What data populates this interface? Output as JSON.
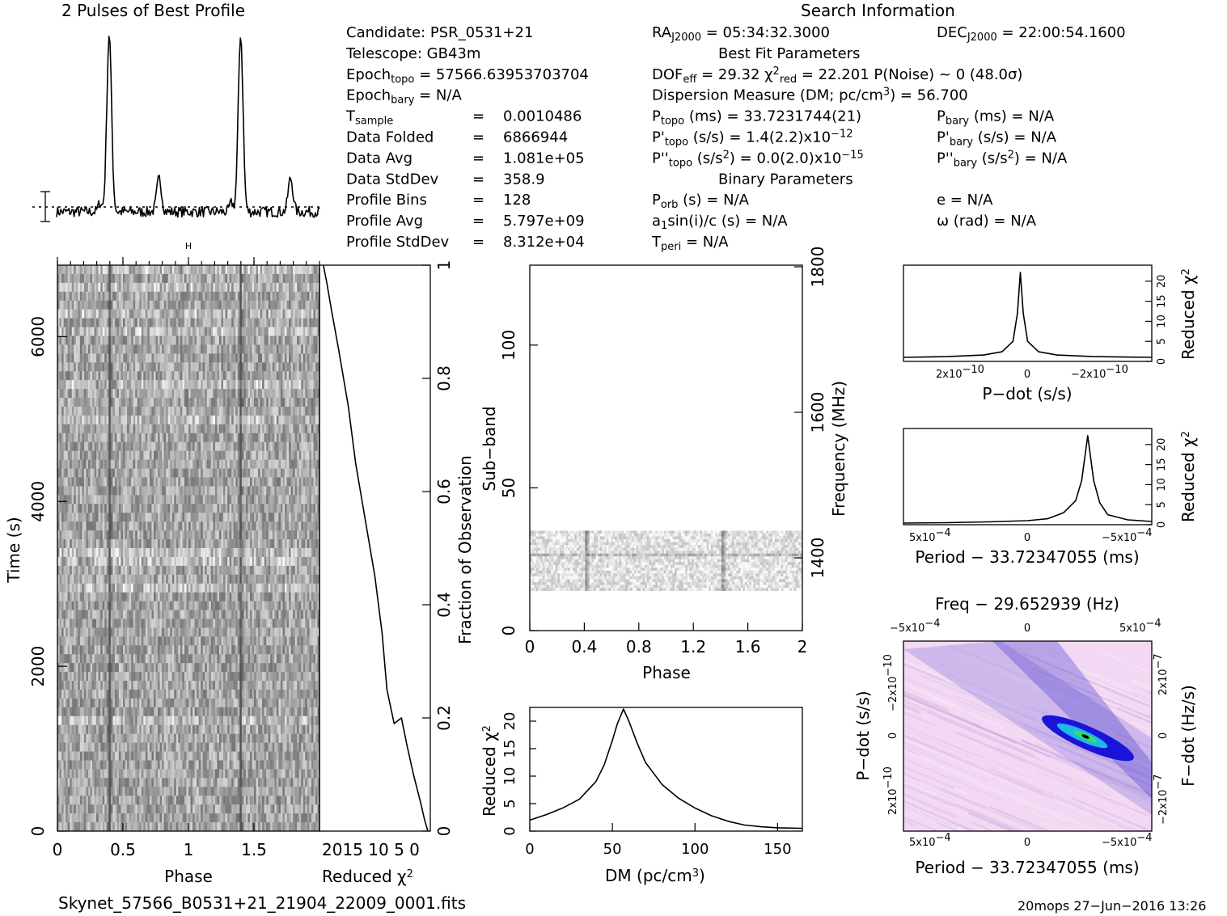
{
  "profile_title": "2 Pulses of Best Profile",
  "search_title": "Search Information",
  "best_fit_title": "Best Fit Parameters",
  "binary_title": "Binary Parameters",
  "col1": [
    [
      "Candidate:",
      "PSR_0531+21"
    ],
    [
      "Telescope:",
      "GB43m"
    ],
    [
      "Epoch",
      "topo",
      "= 57566.63953703704"
    ],
    [
      "Epoch",
      "bary",
      "= N/A"
    ],
    [
      "T",
      "sample",
      "=",
      "0.0010486"
    ],
    [
      "Data Folded",
      "=",
      "6866944"
    ],
    [
      "Data Avg",
      "=",
      "1.081e+05"
    ],
    [
      "Data StdDev",
      "=",
      "358.9"
    ],
    [
      "Profile Bins",
      "=",
      "128"
    ],
    [
      "Profile Avg",
      "=",
      "5.797e+09"
    ],
    [
      "Profile StdDev",
      "=",
      "8.312e+04"
    ]
  ],
  "ra": [
    "RA",
    "J2000",
    "= 05:34:32.3000"
  ],
  "dec": [
    "DEC",
    "J2000",
    "= 22:00:54.1600"
  ],
  "dof_line": {
    "dof_label": "DOF",
    "dof_sub": "eff",
    "dof_val": "= 29.32",
    "chi_label": "χ",
    "chi_sup": "2",
    "chi_sub": "red",
    "chi_val": "= 22.201",
    "noise": "P(Noise) ~ 0",
    "sigma": "(48.0σ)"
  },
  "dm_line": "Dispersion Measure (DM; pc/cm",
  "dm_line_sup": "3",
  "dm_line_end": ") = 56.700",
  "ptopo": [
    "P",
    "topo",
    "(ms) =",
    "33.7231744(21)"
  ],
  "pbary": [
    "P",
    "bary",
    "(ms) = N/A"
  ],
  "pdtopo": [
    "P'",
    "topo",
    "(s/s) =",
    "1.4(2.2)x10",
    "−12"
  ],
  "pdbary": [
    "P'",
    "bary",
    "(s/s) = N/A"
  ],
  "pddtopo": [
    "P''",
    "topo",
    "(s/s",
    "2",
    ") = 0.0(2.0)x10",
    "−15"
  ],
  "pddbary": [
    "P''",
    "bary",
    "(s/s",
    "2",
    ") = N/A"
  ],
  "porb": [
    "P",
    "orb",
    "(s) = N/A"
  ],
  "ecc": "e = N/A",
  "a1": [
    "a",
    "1",
    "sin(i)/c (s) = N/A"
  ],
  "omega": "ω (rad) = N/A",
  "tperi": [
    "T",
    "peri",
    "= N/A"
  ],
  "footer_file": "Skynet_57566_B0531+21_21904_22009_0001.fits",
  "footer_stamp": "20mops 27−Jun−2016 13:26",
  "labels": {
    "phase": "Phase",
    "time": "Time (s)",
    "reduced_chi": "Reduced χ",
    "chi_sup": "2",
    "fraction": "Fraction of Observation",
    "subband": "Sub−band",
    "frequency": "Frequency (MHz)",
    "dm": "DM (pc/cm",
    "dm_sup": "3",
    "dm_end": ")",
    "pdot": "P−dot (s/s)",
    "period": "Period − 33.72347055 (ms)",
    "freq_title": "Freq − 29.652939 (Hz)",
    "fdot": "F−dot (Hz/s)"
  },
  "ticks": {
    "time": [
      "0",
      "2000",
      "4000",
      "6000"
    ],
    "phase": [
      "0",
      "0.5",
      "1",
      "1.5"
    ],
    "chi_rev": "2015 10 5  0",
    "fraction": [
      "0",
      "0.2",
      "0.4",
      "0.6",
      "0.8",
      "1"
    ],
    "subband": [
      "0",
      "50",
      "100"
    ],
    "freq": [
      "1400",
      "1600",
      "1800"
    ],
    "phase2": [
      "0",
      "0.4",
      "0.8",
      "1.2",
      "1.6",
      "2"
    ],
    "dm": [
      "0",
      "50",
      "100",
      "150"
    ],
    "chi_vert": [
      "0",
      "5",
      "10",
      "15",
      "20"
    ],
    "pdot_x": [
      "2x10",
      "−10",
      "0",
      "−2x10",
      "−10"
    ],
    "period_x": [
      "5x10",
      "−4",
      "0",
      "−5x10",
      "−4"
    ],
    "pdot_y": [
      "−2x10",
      "−10",
      "0",
      "2x10",
      "−10"
    ],
    "fdot_y": [
      "2x10",
      "−7",
      "0",
      "−2x10",
      "−7"
    ]
  },
  "chart_data": [
    {
      "type": "line",
      "name": "profile",
      "x_range": [
        0,
        2
      ],
      "note_peaks": [
        {
          "phase": 0.4,
          "rel": 1.0
        },
        {
          "phase": 0.78,
          "rel": 0.19
        },
        {
          "phase": 1.4,
          "rel": 1.0
        },
        {
          "phase": 1.78,
          "rel": 0.19
        }
      ]
    },
    {
      "type": "heatmap",
      "name": "time-phase",
      "xlabel": "Phase",
      "ylabel": "Time (s)",
      "xlim": [
        0,
        2
      ],
      "ylim": [
        0,
        6867
      ],
      "pulse_phases": [
        0.4,
        1.4
      ]
    },
    {
      "type": "line",
      "name": "reduced-chi-vs-fraction",
      "xlabel": "Reduced χ2",
      "ylabel": "Fraction of Observation",
      "x": [
        0.5,
        1.2,
        2.0,
        3.5,
        4.8,
        6.0,
        7.5,
        9.0,
        10.0,
        11.5,
        13.5,
        15.5,
        17.0,
        19.0,
        20.5,
        21.5,
        22.2
      ],
      "y": [
        0.0,
        0.02,
        0.05,
        0.1,
        0.15,
        0.2,
        0.19,
        0.25,
        0.35,
        0.45,
        0.55,
        0.65,
        0.75,
        0.85,
        0.92,
        0.97,
        1.0
      ]
    },
    {
      "type": "heatmap",
      "name": "subband-phase",
      "xlabel": "Phase",
      "ylabel": "Sub−band",
      "xlim": [
        0,
        2
      ],
      "ylim": [
        0,
        128
      ],
      "filled_subbands": [
        14,
        35
      ],
      "pulse_phases": [
        0.42,
        1.42
      ]
    },
    {
      "type": "line",
      "name": "chi-vs-dm",
      "xlabel": "DM (pc/cm3)",
      "ylabel": "Reduced χ2",
      "xlim": [
        0,
        165
      ],
      "ylim": [
        0,
        22.5
      ],
      "x": [
        0,
        10,
        20,
        30,
        40,
        45,
        50,
        53,
        56.7,
        60,
        65,
        70,
        80,
        90,
        100,
        110,
        120,
        130,
        140,
        150,
        165
      ],
      "y": [
        2.0,
        3.0,
        4.2,
        5.8,
        9.0,
        12.0,
        16.5,
        19.5,
        22.2,
        20.0,
        16.0,
        12.5,
        8.5,
        6.0,
        4.2,
        2.8,
        1.8,
        1.1,
        0.8,
        0.6,
        0.5
      ]
    },
    {
      "type": "line",
      "name": "chi-vs-pdot",
      "xlabel": "P−dot (s/s)",
      "ylabel": "Reduced χ2",
      "xlim": [
        3.2e-10,
        -3.6e-10
      ],
      "ylim": [
        0,
        24
      ],
      "x": [
        3.2e-10,
        2e-10,
        1e-10,
        5e-11,
        2e-11,
        8e-12,
        0,
        -8e-12,
        -2e-11,
        -5e-11,
        -1e-10,
        -2e-10,
        -3.6e-10
      ],
      "y": [
        1.0,
        1.2,
        1.6,
        2.4,
        5.0,
        12.0,
        22.2,
        12.0,
        5.0,
        2.4,
        1.6,
        1.2,
        1.0
      ]
    },
    {
      "type": "line",
      "name": "chi-vs-period",
      "xlabel": "Period − 33.72347055 (ms)",
      "ylabel": "Reduced χ2",
      "xlim": [
        0.00062,
        -0.00062
      ],
      "ylim": [
        0,
        24
      ],
      "x": [
        0.00062,
        0.0004,
        0.0002,
        0,
        -0.0001,
        -0.00018,
        -0.00024,
        -0.00027,
        -0.0003,
        -0.00033,
        -0.00036,
        -0.0004,
        -0.0005,
        -0.00062
      ],
      "y": [
        0.4,
        0.5,
        0.7,
        1.0,
        1.5,
        3.0,
        6.0,
        11.0,
        22.2,
        11.0,
        5.5,
        2.5,
        1.2,
        0.8
      ]
    },
    {
      "type": "heatmap",
      "name": "pdot-period",
      "xlabel": "Period − 33.72347055 (ms)",
      "ylabel": "P−dot (s/s)",
      "x_peak": -0.0003,
      "y_peak": 0.0
    }
  ]
}
